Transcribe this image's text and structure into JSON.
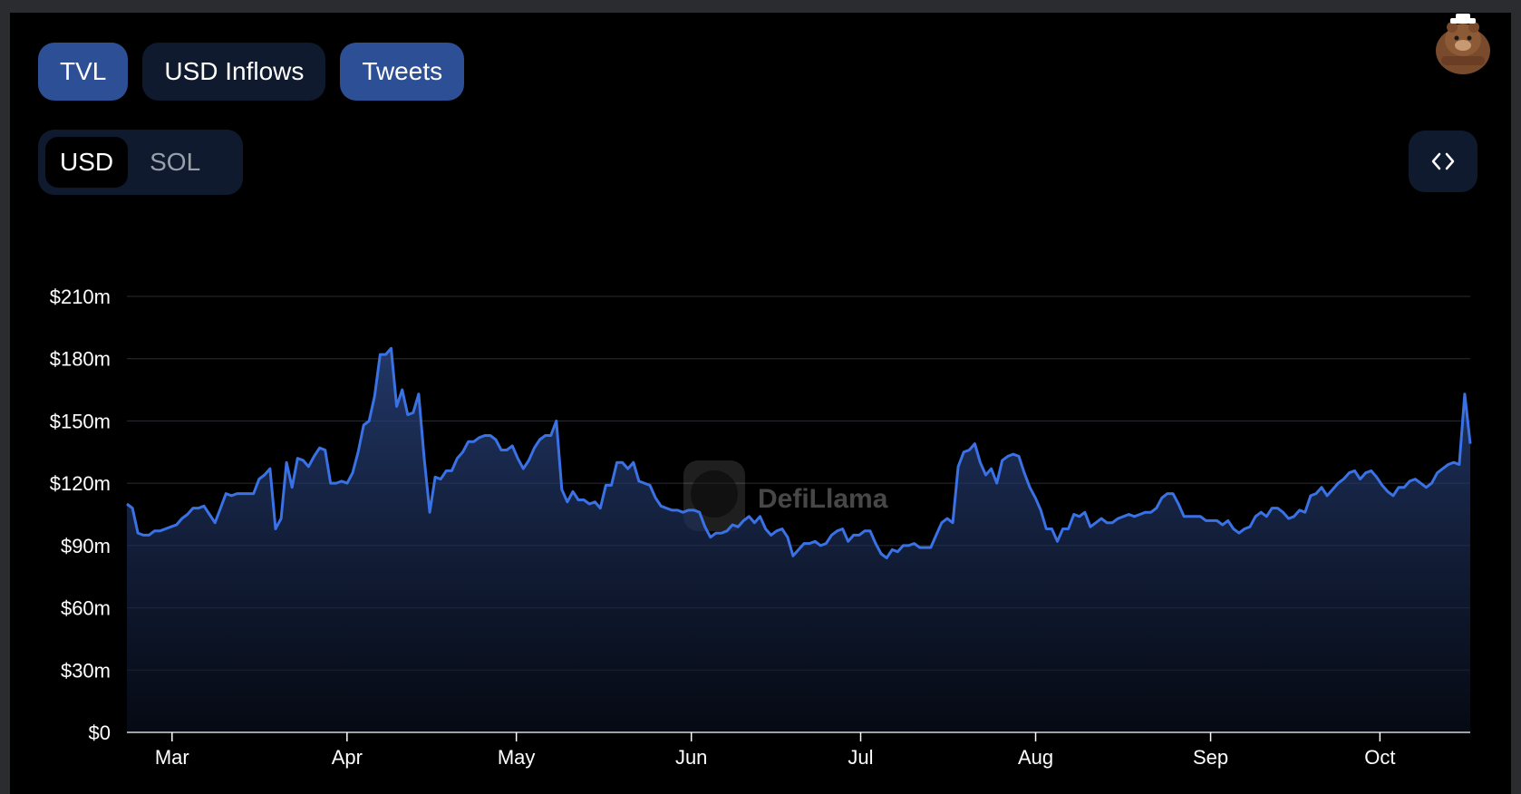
{
  "tabs": [
    {
      "label": "TVL",
      "active": true
    },
    {
      "label": "USD Inflows",
      "active": false
    },
    {
      "label": "Tweets",
      "active": true
    }
  ],
  "denomination": {
    "options": [
      "USD",
      "SOL"
    ],
    "selected": "USD"
  },
  "embed_icon": "code-brackets-icon",
  "avatar_icon": "bear-avatar-icon",
  "watermark": {
    "text": "DefiLlama",
    "icon": "llama-logo-icon"
  },
  "colors": {
    "line": "#3a72e6",
    "tab_active": "#2c4f96",
    "tab_inactive": "#0f1a2e",
    "background": "#000000"
  },
  "chart_data": {
    "type": "area",
    "title": "",
    "xlabel": "",
    "ylabel": "",
    "grid": true,
    "ylim": [
      0,
      210
    ],
    "yunit": "$m",
    "y_ticks": [
      {
        "value": 0,
        "label": "$0"
      },
      {
        "value": 30,
        "label": "$30m"
      },
      {
        "value": 60,
        "label": "$60m"
      },
      {
        "value": 90,
        "label": "$90m"
      },
      {
        "value": 120,
        "label": "$120m"
      },
      {
        "value": 150,
        "label": "$150m"
      },
      {
        "value": 180,
        "label": "$180m"
      },
      {
        "value": 210,
        "label": "$210m"
      }
    ],
    "x_ticks": [
      "Mar",
      "Apr",
      "May",
      "Jun",
      "Jul",
      "Aug",
      "Sep",
      "Oct"
    ],
    "x_range": [
      "Feb 21",
      "Oct 17"
    ],
    "series": [
      {
        "values": [
          110,
          108,
          96,
          95,
          95,
          97,
          97,
          98,
          99,
          100,
          103,
          105,
          108,
          108,
          109,
          105,
          101,
          108,
          115,
          114,
          115,
          115,
          115,
          115,
          122,
          124,
          127,
          98,
          103,
          130,
          118,
          132,
          131,
          128,
          133,
          137,
          136,
          120,
          120,
          121,
          120,
          125,
          135,
          148,
          150,
          162,
          182,
          182,
          185,
          157,
          165,
          153,
          154,
          163,
          132,
          106,
          123,
          122,
          126,
          126,
          132,
          135,
          140,
          140,
          142,
          143,
          143,
          141,
          136,
          136,
          138,
          132,
          127,
          131,
          137,
          141,
          143,
          143,
          150,
          117,
          111,
          116,
          112,
          112,
          110,
          111,
          108,
          119,
          119,
          130,
          130,
          127,
          130,
          121,
          120,
          119,
          113,
          109,
          108,
          107,
          107,
          106,
          107,
          107,
          106,
          99,
          94,
          96,
          96,
          97,
          100,
          99,
          102,
          104,
          101,
          104,
          98,
          95,
          97,
          98,
          94,
          85,
          88,
          91,
          91,
          92,
          90,
          91,
          95,
          97,
          98,
          92,
          95,
          95,
          97,
          97,
          91,
          86,
          84,
          88,
          87,
          90,
          90,
          91,
          89,
          89,
          89,
          95,
          101,
          103,
          101,
          128,
          135,
          136,
          139,
          130,
          124,
          127,
          120,
          131,
          133,
          134,
          133,
          125,
          118,
          113,
          107,
          98,
          98,
          92,
          98,
          98,
          105,
          104,
          106,
          99,
          101,
          103,
          101,
          101,
          103,
          104,
          105,
          104,
          105,
          106,
          106,
          108,
          113,
          115,
          115,
          110,
          104,
          104,
          104,
          104,
          102,
          102,
          102,
          100,
          102,
          98,
          96,
          98,
          99,
          104,
          106,
          104,
          108,
          108,
          106,
          103,
          104,
          107,
          106,
          114,
          115,
          118,
          114,
          117,
          120,
          122,
          125,
          126,
          122,
          125,
          126,
          123,
          119,
          116,
          114,
          118,
          118,
          121,
          122,
          120,
          118,
          120,
          125,
          127,
          129,
          130,
          129,
          163,
          139
        ]
      }
    ]
  }
}
